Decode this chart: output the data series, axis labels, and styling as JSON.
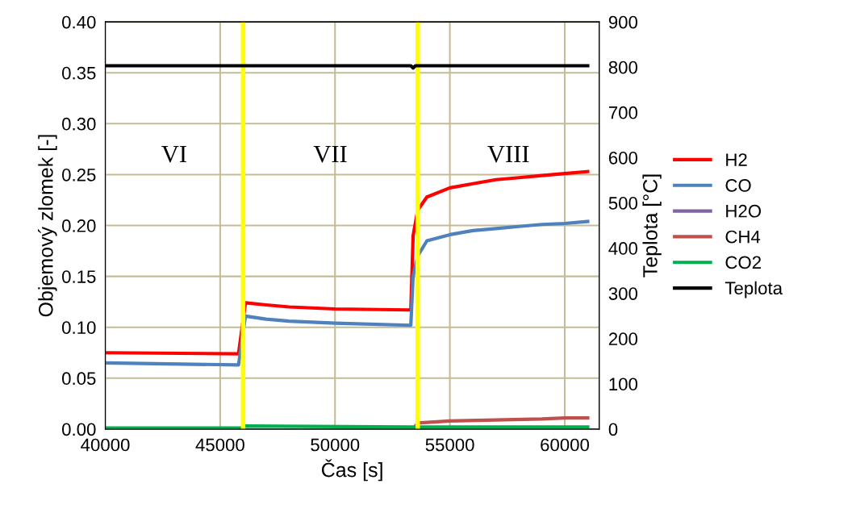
{
  "chart_data": {
    "type": "line",
    "xlabel": "Čas [s]",
    "ylabel": "Objemový zlomek [-]",
    "y2label": "Teplota [°C]",
    "xlim": [
      40000,
      61500
    ],
    "xticks": [
      40000,
      45000,
      50000,
      55000,
      60000
    ],
    "ylim": [
      0,
      0.4
    ],
    "yticks": [
      {
        "value": 0,
        "label": "0.00"
      },
      {
        "value": 0.05,
        "label": "0.05"
      },
      {
        "value": 0.1,
        "label": "0.10"
      },
      {
        "value": 0.15,
        "label": "0.15"
      },
      {
        "value": 0.2,
        "label": "0.20"
      },
      {
        "value": 0.25,
        "label": "0.25"
      },
      {
        "value": 0.3,
        "label": "0.30"
      },
      {
        "value": 0.35,
        "label": "0.35"
      },
      {
        "value": 0.4,
        "label": "0.40"
      }
    ],
    "y2lim": [
      0,
      900
    ],
    "y2ticks": [
      0,
      100,
      200,
      300,
      400,
      500,
      600,
      700,
      800,
      900
    ],
    "grid": true,
    "legend": "right",
    "marker": "none",
    "line_style": "solid",
    "series": [
      {
        "name": "H2",
        "color": "#ff0000",
        "x": [
          40000,
          45800,
          46100,
          47000,
          48000,
          50000,
          53300,
          53400,
          53600,
          54000,
          55000,
          56000,
          57000,
          58000,
          59000,
          60000,
          61000
        ],
        "values": [
          0.075,
          0.074,
          0.124,
          0.122,
          0.12,
          0.118,
          0.117,
          0.19,
          0.215,
          0.228,
          0.237,
          0.241,
          0.245,
          0.247,
          0.249,
          0.251,
          0.253
        ]
      },
      {
        "name": "CO",
        "color": "#4f81bd",
        "x": [
          40000,
          45800,
          46100,
          47000,
          48000,
          50000,
          53300,
          53400,
          53600,
          54000,
          55000,
          56000,
          57000,
          58000,
          59000,
          60000,
          61000
        ],
        "values": [
          0.065,
          0.063,
          0.111,
          0.108,
          0.106,
          0.104,
          0.102,
          0.15,
          0.17,
          0.185,
          0.191,
          0.195,
          0.197,
          0.199,
          0.201,
          0.202,
          0.204
        ]
      },
      {
        "name": "H2O",
        "color": "#8064a2"
      },
      {
        "name": "CH4",
        "color": "#c0504d",
        "x": [
          53400,
          53600,
          55000,
          57000,
          59000,
          60000,
          61000
        ],
        "values": [
          0,
          0.006,
          0.008,
          0.009,
          0.01,
          0.011,
          0.011
        ]
      },
      {
        "name": "CO2",
        "color": "#00b050",
        "x": [
          40000,
          45900,
          46100,
          53400,
          61000
        ],
        "values": [
          0.001,
          0.001,
          0.003,
          0.002,
          0.002
        ]
      },
      {
        "name": "Teplota",
        "color": "#000000",
        "axis": "y2",
        "x": [
          40000,
          53300,
          53400,
          53500,
          61000
        ],
        "values": [
          803,
          803,
          798,
          803,
          803
        ]
      }
    ],
    "ref_lines": [
      {
        "axis": "x",
        "value": 46000,
        "color": "#ffff00"
      },
      {
        "axis": "x",
        "value": 53600,
        "color": "#ffff00"
      }
    ],
    "annotations": [
      "VI",
      "VII",
      "VIII"
    ]
  }
}
